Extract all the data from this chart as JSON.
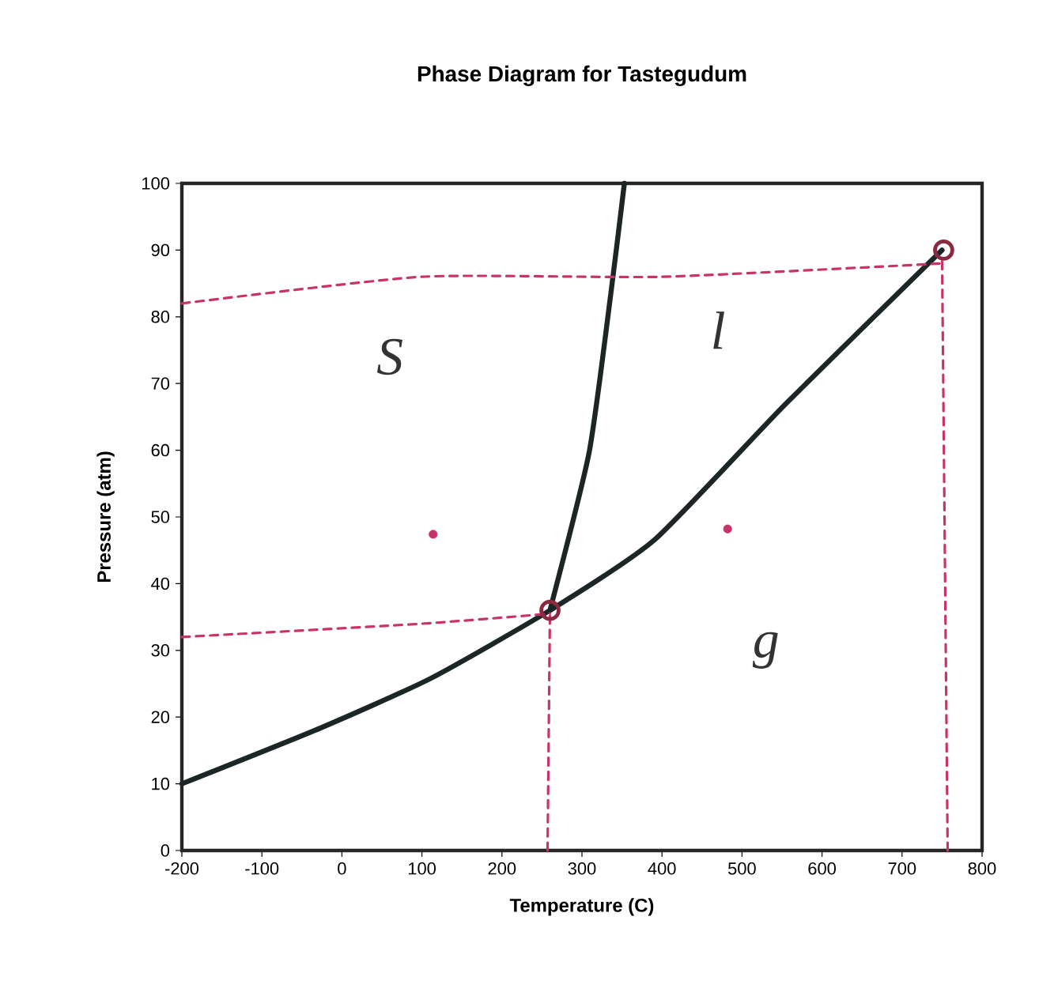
{
  "chart_data": {
    "type": "line",
    "title": "Phase Diagram for Tastegudum",
    "xlabel": "Temperature (C)",
    "ylabel": "Pressure (atm)",
    "xlim": [
      -200,
      800
    ],
    "ylim": [
      0,
      100
    ],
    "xticks": [
      -200,
      -100,
      0,
      100,
      200,
      300,
      400,
      500,
      600,
      700,
      800
    ],
    "yticks": [
      0,
      10,
      20,
      30,
      40,
      50,
      60,
      70,
      80,
      90,
      100
    ],
    "series": [
      {
        "color": "#1c2626",
        "x": [
          -200,
          -26,
          111,
          260,
          391,
          555,
          750
        ],
        "values": [
          10,
          18.4,
          25.8,
          36,
          46.6,
          67,
          90
        ]
      },
      {
        "color": "#1c2626",
        "x": [
          260,
          309,
          336,
          353
        ],
        "values": [
          36,
          59.7,
          83.4,
          100
        ]
      },
      {
        "type": "line",
        "color": "#c8336a",
        "line_style": "dashed",
        "x": [
          -200,
          100,
          400,
          750
        ],
        "values": [
          82,
          86,
          86,
          88
        ]
      },
      {
        "type": "line",
        "color": "#c8336a",
        "line_style": "dashed",
        "x": [
          -200,
          100,
          260
        ],
        "values": [
          32,
          34,
          35.5
        ]
      },
      {
        "type": "line",
        "color": "#c8336a",
        "line_style": "dashed",
        "x": [
          257,
          260
        ],
        "values": [
          0,
          36
        ]
      },
      {
        "type": "line",
        "color": "#c8336a",
        "line_style": "dashed",
        "x": [
          757,
          750
        ],
        "values": [
          0,
          89
        ]
      },
      {
        "type": "scatter",
        "color": "#8a2a40",
        "marker": "circle",
        "x": [
          260,
          752
        ],
        "values": [
          36,
          90
        ]
      },
      {
        "type": "scatter",
        "color": "#c8336a",
        "marker": "dot",
        "x": [
          114,
          482
        ],
        "values": [
          47.4,
          48.2
        ]
      }
    ],
    "annotations": [
      "S",
      "l",
      "g"
    ]
  }
}
